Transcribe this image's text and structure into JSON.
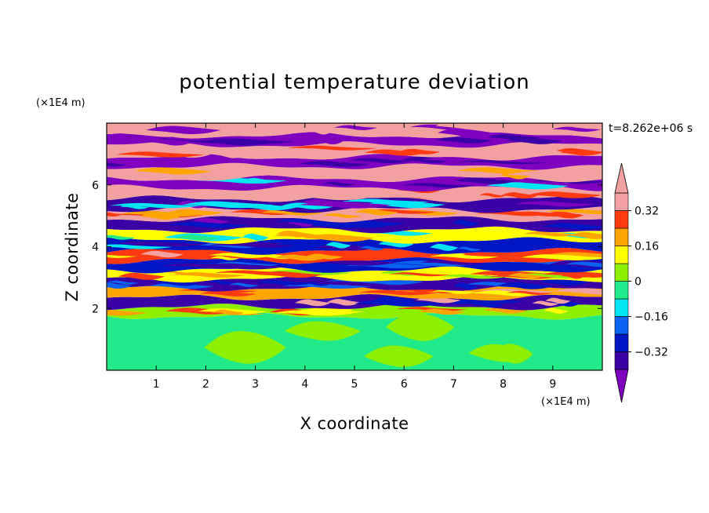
{
  "chart_data": {
    "type": "heatmap",
    "title": "potential temperature deviation",
    "xlabel": "X coordinate",
    "ylabel": "Z coordinate",
    "x_unit": "(×1E4 m)",
    "y_unit": "(×1E4 m)",
    "time_label": "t=8.262e+06 s",
    "xlim": [
      0,
      10
    ],
    "ylim": [
      0,
      8
    ],
    "x_ticks": [
      1,
      2,
      3,
      4,
      5,
      6,
      7,
      8,
      9
    ],
    "y_ticks": [
      2,
      4,
      6
    ],
    "x_tick_labels": [
      "1",
      "2",
      "3",
      "4",
      "5",
      "6",
      "7",
      "8",
      "9"
    ],
    "y_tick_labels": [
      "2",
      "4",
      "6"
    ],
    "colorbar": {
      "levels": [
        -0.4,
        -0.32,
        -0.24,
        -0.16,
        -0.08,
        0,
        0.08,
        0.16,
        0.24,
        0.32,
        0.4
      ],
      "colors": [
        "#7f00bf",
        "#3a00a6",
        "#0016c4",
        "#0a62f0",
        "#00e5f2",
        "#20ea8a",
        "#8cf000",
        "#ffff00",
        "#ffa500",
        "#ff3a10",
        "#f2a0a0",
        "#f2a0a0"
      ],
      "extend": "both",
      "tick_values": [
        -0.32,
        -0.16,
        0,
        0.16,
        0.32
      ],
      "tick_labels": [
        "−0.32",
        "−0.16",
        "0",
        "0.16",
        "0.32"
      ]
    },
    "bands": [
      {
        "z0": 0.0,
        "z1": 1.75,
        "desc": "lower layer",
        "colors": [
          5,
          6
        ],
        "mix": 0.45
      },
      {
        "z0": 1.75,
        "z1": 2.05,
        "colors": [
          6,
          7,
          8,
          9
        ],
        "mix": 0.6
      },
      {
        "z0": 2.05,
        "z1": 2.35,
        "colors": [
          1,
          2,
          10
        ],
        "mix": 0.5
      },
      {
        "z0": 2.35,
        "z1": 2.65,
        "colors": [
          8,
          9,
          7,
          10
        ],
        "mix": 0.6
      },
      {
        "z0": 2.65,
        "z1": 2.95,
        "colors": [
          1,
          2,
          3
        ],
        "mix": 0.5
      },
      {
        "z0": 2.95,
        "z1": 3.25,
        "colors": [
          7,
          8,
          9,
          6
        ],
        "mix": 0.6
      },
      {
        "z0": 3.25,
        "z1": 3.55,
        "colors": [
          2,
          1,
          3
        ],
        "mix": 0.5
      },
      {
        "z0": 3.55,
        "z1": 3.85,
        "colors": [
          9,
          8,
          10,
          7
        ],
        "mix": 0.6
      },
      {
        "z0": 3.85,
        "z1": 4.2,
        "colors": [
          2,
          1,
          3,
          4
        ],
        "mix": 0.5
      },
      {
        "z0": 4.2,
        "z1": 4.55,
        "colors": [
          7,
          8,
          5,
          4
        ],
        "mix": 0.6
      },
      {
        "z0": 4.55,
        "z1": 4.9,
        "colors": [
          1,
          0,
          2
        ],
        "mix": 0.5
      },
      {
        "z0": 4.9,
        "z1": 5.2,
        "colors": [
          10,
          9,
          8
        ],
        "mix": 0.55
      },
      {
        "z0": 5.2,
        "z1": 5.55,
        "colors": [
          1,
          0,
          4
        ],
        "mix": 0.45
      },
      {
        "z0": 5.55,
        "z1": 5.9,
        "colors": [
          10,
          10,
          9
        ],
        "mix": 0.4
      },
      {
        "z0": 5.9,
        "z1": 6.2,
        "colors": [
          0,
          1,
          4
        ],
        "mix": 0.4
      },
      {
        "z0": 6.2,
        "z1": 6.6,
        "colors": [
          10,
          10,
          8
        ],
        "mix": 0.35
      },
      {
        "z0": 6.6,
        "z1": 6.9,
        "colors": [
          0,
          0,
          1
        ],
        "mix": 0.35
      },
      {
        "z0": 6.9,
        "z1": 7.3,
        "colors": [
          10,
          10,
          9
        ],
        "mix": 0.35
      },
      {
        "z0": 7.3,
        "z1": 7.6,
        "colors": [
          0,
          0,
          1
        ],
        "mix": 0.35
      },
      {
        "z0": 7.6,
        "z1": 8.0,
        "colors": [
          10,
          0,
          10
        ],
        "mix": 0.4
      }
    ]
  }
}
